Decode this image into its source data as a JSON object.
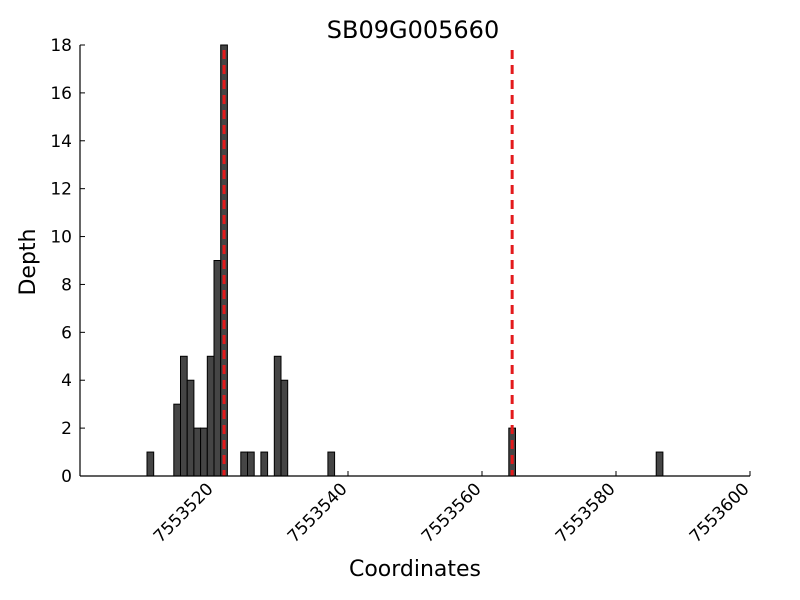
{
  "chart_data": {
    "type": "bar",
    "title": "SB09G005660",
    "xlabel": "Coordinates",
    "ylabel": "Depth",
    "xlim": [
      7553500,
      7553600
    ],
    "ylim": [
      0,
      18
    ],
    "x_ticks": [
      "7553520",
      "7553540",
      "7553560",
      "7553580",
      "7553600"
    ],
    "y_ticks": [
      "0",
      "2",
      "4",
      "6",
      "8",
      "10",
      "12",
      "14",
      "16",
      "18"
    ],
    "bar_width": 1,
    "bars": [
      {
        "x": 7553510,
        "value": 1
      },
      {
        "x": 7553514,
        "value": 3
      },
      {
        "x": 7553515,
        "value": 5
      },
      {
        "x": 7553516,
        "value": 4
      },
      {
        "x": 7553517,
        "value": 2
      },
      {
        "x": 7553518,
        "value": 2
      },
      {
        "x": 7553519,
        "value": 5
      },
      {
        "x": 7553520,
        "value": 9
      },
      {
        "x": 7553521,
        "value": 18
      },
      {
        "x": 7553524,
        "value": 1
      },
      {
        "x": 7553525,
        "value": 1
      },
      {
        "x": 7553527,
        "value": 1
      },
      {
        "x": 7553529,
        "value": 5
      },
      {
        "x": 7553530,
        "value": 4
      },
      {
        "x": 7553537,
        "value": 1
      },
      {
        "x": 7553564,
        "value": 2
      },
      {
        "x": 7553586,
        "value": 1
      }
    ],
    "reference_lines": [
      7553521.5,
      7553564.5
    ],
    "colors": {
      "bar_fill": "#454545",
      "bar_edge": "#000000",
      "reference_line": "#e31a1c"
    },
    "grid": false,
    "legend": "none"
  }
}
